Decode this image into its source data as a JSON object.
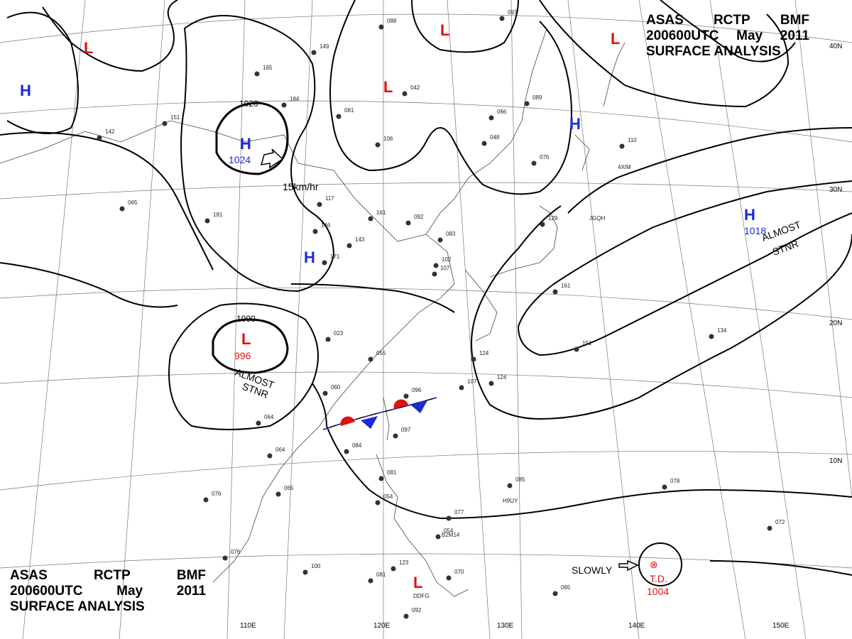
{
  "title": {
    "line1": [
      "ASAS",
      "RCTP",
      "BMF"
    ],
    "line2": [
      "200600UTC",
      "May",
      "2011"
    ],
    "line3": "SURFACE ANALYSIS"
  },
  "longitude_labels": [
    "110E",
    "120E",
    "130E",
    "140E",
    "150E"
  ],
  "latitude_labels": [
    "40N",
    "30N",
    "20N",
    "10N"
  ],
  "isobar_labels": [
    "1020",
    "1000"
  ],
  "pressure_centers": {
    "high": [
      {
        "symbol": "H",
        "value": "1024"
      },
      {
        "symbol": "H",
        "value": ""
      },
      {
        "symbol": "H",
        "value": ""
      },
      {
        "symbol": "H",
        "value": ""
      },
      {
        "symbol": "H",
        "value": "1018"
      }
    ],
    "low": [
      {
        "symbol": "L",
        "value": ""
      },
      {
        "symbol": "L",
        "value": ""
      },
      {
        "symbol": "L",
        "value": ""
      },
      {
        "symbol": "L",
        "value": ""
      },
      {
        "symbol": "L",
        "value": "996"
      },
      {
        "symbol": "L",
        "value": ""
      }
    ]
  },
  "annotations": {
    "movement_speed": "15km/hr",
    "almost_stnr_1": [
      "ALMOST",
      "STNR"
    ],
    "almost_stnr_2": [
      "ALMOST",
      "STNR"
    ],
    "slowly": "SLOWLY",
    "td_label": "T.D.",
    "td_pressure": "1004"
  },
  "station_values": [
    "088",
    "042",
    "097",
    "149",
    "165",
    "184",
    "081",
    "142",
    "151",
    "106",
    "066",
    "048",
    "089",
    "076",
    "110",
    "117",
    "161",
    "092",
    "065",
    "181",
    "146",
    "143",
    "083",
    "102",
    "107",
    "171",
    "129",
    "161",
    "023",
    "055",
    "134",
    "124",
    "151",
    "060",
    "096",
    "107",
    "124",
    "064",
    "064",
    "097",
    "084",
    "081",
    "054",
    "076",
    "065",
    "076",
    "077",
    "085",
    "078",
    "072",
    "054",
    "123",
    "081",
    "100",
    "065",
    "092",
    "070"
  ],
  "station_ids": [
    "4XIM",
    "JGQH",
    "H9UY",
    "B2M14",
    "DDFG"
  ],
  "colors": {
    "high": "#1a2ad6",
    "low": "#e01010",
    "front_warm": "#e01010",
    "front_cold": "#1a2ad6",
    "isobar": "#000000"
  }
}
